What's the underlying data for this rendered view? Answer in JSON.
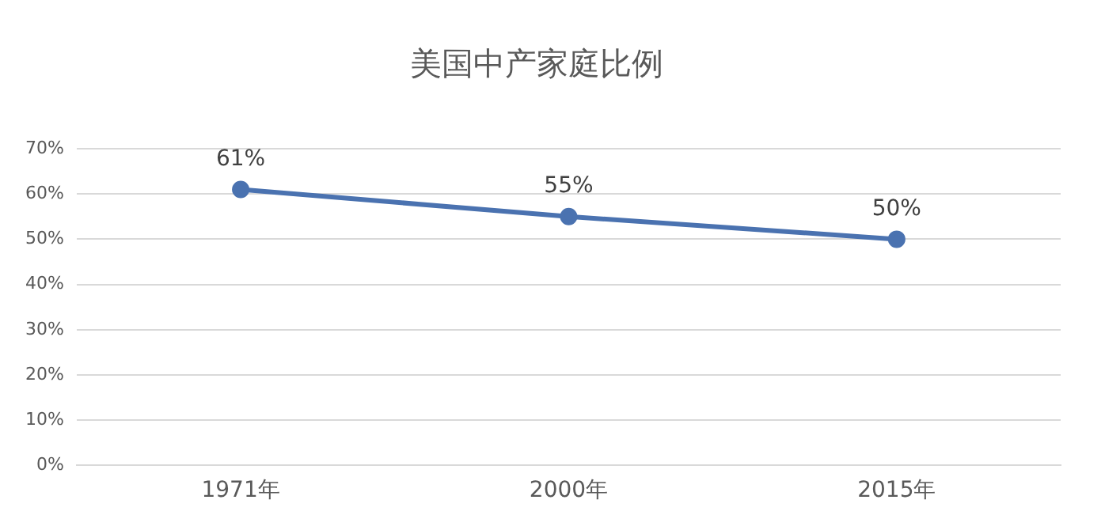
{
  "chart_data": {
    "type": "line",
    "title": "美国中产家庭比例",
    "categories": [
      "1971年",
      "2000年",
      "2015年"
    ],
    "series": [
      {
        "color": "#4a72b0",
        "values": [
          61,
          55,
          50
        ],
        "value_labels": [
          "61%",
          "55%",
          "50%"
        ]
      }
    ],
    "ylim": [
      0,
      70
    ],
    "yticks": [
      {
        "value": 0,
        "label": "0%"
      },
      {
        "value": 10,
        "label": "10%"
      },
      {
        "value": 20,
        "label": "20%"
      },
      {
        "value": 30,
        "label": "30%"
      },
      {
        "value": 40,
        "label": "40%"
      },
      {
        "value": 50,
        "label": "50%"
      },
      {
        "value": 60,
        "label": "60%"
      },
      {
        "value": 70,
        "label": "70%"
      }
    ],
    "grid": "y",
    "legend": false,
    "marker": "circle",
    "line_style": "solid"
  }
}
